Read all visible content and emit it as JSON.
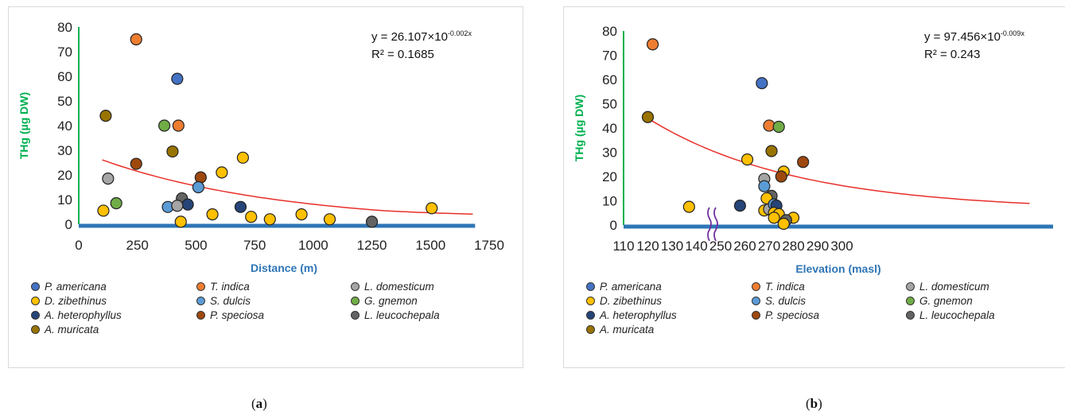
{
  "species": [
    {
      "name": "P. americana",
      "color": "#4472c4"
    },
    {
      "name": "T. indica",
      "color": "#ed7d31"
    },
    {
      "name": "L. domesticum",
      "color": "#a5a5a5"
    },
    {
      "name": "D. zibethinus",
      "color": "#ffc000"
    },
    {
      "name": "S. dulcis",
      "color": "#5b9bd5"
    },
    {
      "name": "G. gnemon",
      "color": "#70ad47"
    },
    {
      "name": "A. heterophyllus",
      "color": "#264478"
    },
    {
      "name": "P. speciosa",
      "color": "#9e480e"
    },
    {
      "name": "L. leucochepala",
      "color": "#636363"
    },
    {
      "name": "A. muricata",
      "color": "#997300"
    }
  ],
  "trend_color": "#e8302a",
  "axis_color": "#2e75b6",
  "ylabel_color": "#00b050",
  "chart_data": [
    {
      "type": "scatter",
      "xlabel": "Distance (m)",
      "ylabel": "THg (µg DW)",
      "xlim": [
        0,
        1750
      ],
      "ylim": [
        0,
        80
      ],
      "x_ticks": [
        "0",
        "250",
        "500",
        "750",
        "1000",
        "1250",
        "1500",
        "1750"
      ],
      "y_ticks": [
        "0",
        "10",
        "20",
        "30",
        "40",
        "50",
        "60",
        "70",
        "80"
      ],
      "equation": {
        "base": "y = 26.107×10",
        "exponent": "-0.002x",
        "r2": "R² = 0.1685"
      },
      "trend": {
        "a": 26.107,
        "b": -0.002,
        "x_range": [
          100,
          1680
        ],
        "decay": 0.0013
      },
      "caption": "a",
      "points": [
        {
          "x": 245,
          "y": 75,
          "s": 1
        },
        {
          "x": 420,
          "y": 59,
          "s": 0
        },
        {
          "x": 115,
          "y": 44,
          "s": 9
        },
        {
          "x": 365,
          "y": 40,
          "s": 5
        },
        {
          "x": 425,
          "y": 40,
          "s": 1
        },
        {
          "x": 400,
          "y": 29.5,
          "s": 9
        },
        {
          "x": 700,
          "y": 27,
          "s": 3
        },
        {
          "x": 245,
          "y": 24.5,
          "s": 7
        },
        {
          "x": 610,
          "y": 21,
          "s": 3
        },
        {
          "x": 520,
          "y": 19,
          "s": 7
        },
        {
          "x": 125,
          "y": 18.5,
          "s": 2
        },
        {
          "x": 510,
          "y": 15,
          "s": 4
        },
        {
          "x": 440,
          "y": 10.5,
          "s": 8
        },
        {
          "x": 160,
          "y": 8.5,
          "s": 5
        },
        {
          "x": 465,
          "y": 8,
          "s": 6
        },
        {
          "x": 380,
          "y": 7,
          "s": 4
        },
        {
          "x": 420,
          "y": 7.5,
          "s": 2
        },
        {
          "x": 690,
          "y": 7,
          "s": 6
        },
        {
          "x": 1505,
          "y": 6.5,
          "s": 3
        },
        {
          "x": 105,
          "y": 5.5,
          "s": 3
        },
        {
          "x": 570,
          "y": 4,
          "s": 3
        },
        {
          "x": 950,
          "y": 4,
          "s": 3
        },
        {
          "x": 735,
          "y": 3,
          "s": 3
        },
        {
          "x": 815,
          "y": 2,
          "s": 3
        },
        {
          "x": 1070,
          "y": 2,
          "s": 3
        },
        {
          "x": 1250,
          "y": 1,
          "s": 8
        },
        {
          "x": 435,
          "y": 1,
          "s": 3
        }
      ]
    },
    {
      "type": "scatter",
      "xlabel": "Elevation (masl)",
      "ylabel": "THg (µg DW)",
      "ylim": [
        0,
        80
      ],
      "x_ticks": [
        "110",
        "120",
        "130",
        "140",
        "250",
        "260",
        "270",
        "280",
        "290",
        "300"
      ],
      "y_ticks": [
        "0",
        "10",
        "20",
        "30",
        "40",
        "50",
        "60",
        "70",
        "80"
      ],
      "axis_break": "between 140 and 250",
      "equation": {
        "base": "y = 97.456×10",
        "exponent": "-0.009x",
        "r2": "R² = 0.243"
      },
      "caption": "b",
      "points": [
        {
          "x": 122,
          "y": 74.5,
          "s": 1
        },
        {
          "x": 120,
          "y": 44.5,
          "s": 9
        },
        {
          "x": 137,
          "y": 7.5,
          "s": 3
        },
        {
          "x": 258,
          "y": 8,
          "s": 6
        },
        {
          "x": 261,
          "y": 27,
          "s": 3
        },
        {
          "x": 267,
          "y": 58.5,
          "s": 0
        },
        {
          "x": 268,
          "y": 19,
          "s": 2
        },
        {
          "x": 268,
          "y": 16,
          "s": 4
        },
        {
          "x": 270,
          "y": 41,
          "s": 1
        },
        {
          "x": 274,
          "y": 40.5,
          "s": 5
        },
        {
          "x": 271,
          "y": 30.5,
          "s": 9
        },
        {
          "x": 284,
          "y": 26,
          "s": 7
        },
        {
          "x": 276,
          "y": 22,
          "s": 3
        },
        {
          "x": 275,
          "y": 20,
          "s": 7
        },
        {
          "x": 271,
          "y": 12,
          "s": 8
        },
        {
          "x": 269,
          "y": 11,
          "s": 3
        },
        {
          "x": 268,
          "y": 6,
          "s": 3
        },
        {
          "x": 270,
          "y": 6.5,
          "s": 2
        },
        {
          "x": 272,
          "y": 8.5,
          "s": 4
        },
        {
          "x": 273,
          "y": 8,
          "s": 6
        },
        {
          "x": 272,
          "y": 5,
          "s": 3
        },
        {
          "x": 274,
          "y": 4.5,
          "s": 3
        },
        {
          "x": 280,
          "y": 3,
          "s": 3
        },
        {
          "x": 277,
          "y": 2,
          "s": 8
        },
        {
          "x": 276,
          "y": 0.5,
          "s": 3
        },
        {
          "x": 272,
          "y": 3,
          "s": 3
        }
      ]
    }
  ]
}
